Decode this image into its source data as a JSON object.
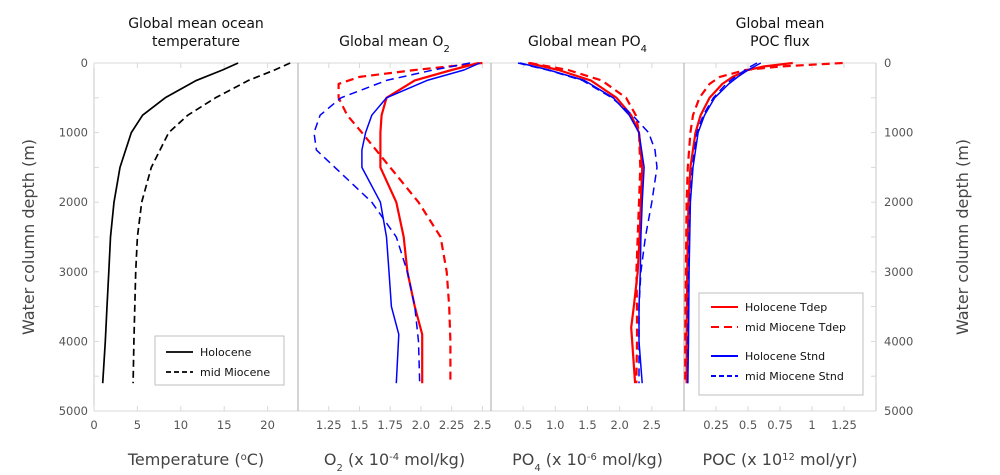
{
  "chart_data": {
    "type": "line",
    "y_axis": {
      "label": "Water column depth (m)",
      "range": [
        0,
        5000
      ],
      "inverted": true,
      "ticks": [
        "0",
        "1000",
        "2000",
        "3000",
        "4000",
        "5000"
      ],
      "tick_values": [
        0,
        1000,
        2000,
        3000,
        4000,
        5000
      ],
      "minor_step": 500
    },
    "panels": [
      {
        "id": "temperature",
        "title_lines": [
          "Global mean ocean",
          "temperature"
        ],
        "xlabel_parts": [
          "Temperature (",
          "o",
          "C)"
        ],
        "xlim": [
          0,
          23.5
        ],
        "ticks": [
          "0",
          "5",
          "10",
          "15",
          "20"
        ],
        "tick_values": [
          0,
          5,
          10,
          15,
          20
        ],
        "legend": {
          "position": "bottom-right",
          "entries": [
            {
              "label": "Holocene",
              "series": "holocene"
            },
            {
              "label": "mid Miocene",
              "series": "mid_miocene"
            }
          ]
        },
        "series": [
          {
            "key": "holocene",
            "name": "Holocene",
            "color": "#000000",
            "dash": "solid",
            "depth": [
              0,
              100,
              250,
              500,
              750,
              1000,
              1500,
              2000,
              2500,
              3000,
              3500,
              4000,
              4600
            ],
            "values": [
              16.6,
              14.8,
              11.8,
              8.2,
              5.6,
              4.3,
              3.0,
              2.3,
              1.9,
              1.7,
              1.5,
              1.3,
              1.0
            ]
          },
          {
            "key": "mid_miocene",
            "name": "mid Miocene",
            "color": "#000000",
            "dash": "dashed",
            "depth": [
              0,
              100,
              250,
              500,
              750,
              1000,
              1500,
              2000,
              2500,
              3000,
              3500,
              4000,
              4600
            ],
            "values": [
              22.6,
              20.8,
              17.8,
              14.0,
              10.8,
              8.6,
              6.6,
              5.5,
              5.0,
              4.8,
              4.7,
              4.6,
              4.5
            ]
          }
        ]
      },
      {
        "id": "o2",
        "title_parts": [
          "Global mean O",
          "2"
        ],
        "xlabel_parts": [
          "O",
          "2",
          " (x 10",
          "-4",
          " mol/kg)"
        ],
        "xlim": [
          1.0,
          2.57
        ],
        "ticks": [
          "1.25",
          "1.5",
          "1.75",
          "2.0",
          "2.25",
          "2.5"
        ],
        "tick_values": [
          1.25,
          1.5,
          1.75,
          2.0,
          2.25,
          2.5
        ],
        "series": [
          {
            "key": "hol_tdep",
            "name": "Holocene Tdep",
            "color": "#ff0000",
            "dash": "solid",
            "depth": [
              0,
              100,
              250,
              500,
              750,
              1000,
              1500,
              2000,
              2500,
              3000,
              3500,
              3900,
              4600
            ],
            "values": [
              2.47,
              2.25,
              1.95,
              1.72,
              1.68,
              1.67,
              1.67,
              1.8,
              1.86,
              1.89,
              1.95,
              2.01,
              2.01
            ]
          },
          {
            "key": "mio_tdep",
            "name": "mid Miocene Tdep",
            "color": "#ff0000",
            "dash": "dashed",
            "depth": [
              0,
              100,
              200,
              300,
              500,
              750,
              1000,
              1500,
              2000,
              2500,
              3000,
              3500,
              4000,
              4600
            ],
            "values": [
              2.5,
              1.95,
              1.5,
              1.33,
              1.33,
              1.4,
              1.52,
              1.75,
              1.98,
              2.16,
              2.21,
              2.23,
              2.24,
              2.24
            ]
          },
          {
            "key": "hol_stnd",
            "name": "Holocene Stnd",
            "color": "#0000ff",
            "dash": "solid",
            "depth": [
              0,
              100,
              250,
              500,
              750,
              1000,
              1250,
              1500,
              2000,
              2500,
              3000,
              3500,
              3900,
              4600
            ],
            "values": [
              2.48,
              2.35,
              2.05,
              1.72,
              1.6,
              1.55,
              1.52,
              1.52,
              1.67,
              1.72,
              1.74,
              1.76,
              1.82,
              1.8
            ]
          },
          {
            "key": "mio_stnd",
            "name": "mid Miocene Stnd",
            "color": "#0000ff",
            "dash": "dashed",
            "depth": [
              0,
              100,
              250,
              500,
              750,
              1000,
              1250,
              1500,
              2000,
              2500,
              3000,
              3500,
              4000,
              4600
            ],
            "values": [
              2.4,
              2.1,
              1.72,
              1.35,
              1.18,
              1.13,
              1.15,
              1.3,
              1.6,
              1.8,
              1.89,
              1.95,
              1.98,
              1.99
            ]
          }
        ]
      },
      {
        "id": "po4",
        "title_parts": [
          "Global mean PO",
          "4"
        ],
        "xlabel_parts": [
          "PO",
          "4",
          " (x 10",
          "-6",
          " mol/kg)"
        ],
        "xlim": [
          0,
          3.0
        ],
        "ticks": [
          "0.5",
          "1.0",
          "1.5",
          "2.0",
          "2.5"
        ],
        "tick_values": [
          0.5,
          1.0,
          1.5,
          2.0,
          2.5
        ],
        "series": [
          {
            "key": "hol_tdep",
            "name": "Holocene Tdep",
            "color": "#ff0000",
            "dash": "solid",
            "depth": [
              0,
              100,
              250,
              500,
              750,
              1000,
              1500,
              2000,
              2500,
              3000,
              3500,
              3800,
              4600
            ],
            "values": [
              0.58,
              1.05,
              1.55,
              1.95,
              2.18,
              2.3,
              2.35,
              2.33,
              2.31,
              2.28,
              2.22,
              2.18,
              2.24
            ]
          },
          {
            "key": "mio_tdep",
            "name": "mid Miocene Tdep",
            "color": "#ff0000",
            "dash": "dashed",
            "depth": [
              0,
              100,
              250,
              500,
              750,
              1000,
              1500,
              2000,
              2500,
              3000,
              3500,
              4000,
              4600
            ],
            "values": [
              0.6,
              1.2,
              1.72,
              2.1,
              2.25,
              2.3,
              2.32,
              2.3,
              2.28,
              2.26,
              2.27,
              2.27,
              2.26
            ]
          },
          {
            "key": "hol_stnd",
            "name": "Holocene Stnd",
            "color": "#0000ff",
            "dash": "solid",
            "depth": [
              0,
              100,
              250,
              500,
              750,
              1000,
              1500,
              2000,
              2500,
              3000,
              3500,
              4000,
              4600
            ],
            "values": [
              0.45,
              0.9,
              1.45,
              1.9,
              2.15,
              2.3,
              2.38,
              2.35,
              2.33,
              2.32,
              2.3,
              2.3,
              2.35
            ]
          },
          {
            "key": "mio_stnd",
            "name": "mid Miocene Stnd",
            "color": "#0000ff",
            "dash": "dashed",
            "depth": [
              0,
              100,
              250,
              500,
              750,
              1000,
              1250,
              1500,
              2000,
              2500,
              3000,
              3500,
              4000,
              4600
            ],
            "values": [
              0.42,
              0.88,
              1.42,
              1.88,
              2.2,
              2.45,
              2.55,
              2.58,
              2.5,
              2.4,
              2.33,
              2.3,
              2.3,
              2.3
            ]
          }
        ]
      },
      {
        "id": "poc",
        "title_lines": [
          "Global mean",
          "POC flux"
        ],
        "xlabel_parts": [
          "POC (x 10",
          "12",
          " mol/yr)"
        ],
        "xlim": [
          0,
          1.5
        ],
        "ticks": [
          "0.25",
          "0.5",
          "0.75",
          "1",
          "1.25"
        ],
        "tick_values": [
          0.25,
          0.5,
          0.75,
          1.0,
          1.25
        ],
        "legend": {
          "position": "bottom-right",
          "entries": [
            {
              "label": "Holocene Tdep",
              "series": "hol_tdep"
            },
            {
              "label": "mid Miocene Tdep",
              "series": "mio_tdep"
            },
            {
              "label": "Holocene Stnd",
              "series": "hol_stnd"
            },
            {
              "label": "mid Miocene Stnd",
              "series": "mio_stnd"
            }
          ]
        },
        "series": [
          {
            "key": "hol_tdep",
            "name": "Holocene Tdep",
            "color": "#ff0000",
            "dash": "solid",
            "depth": [
              0,
              50,
              100,
              200,
              300,
              500,
              750,
              1000,
              1500,
              2000,
              3000,
              4000,
              4600
            ],
            "values": [
              0.85,
              0.62,
              0.5,
              0.38,
              0.3,
              0.2,
              0.13,
              0.09,
              0.05,
              0.035,
              0.025,
              0.02,
              0.02
            ]
          },
          {
            "key": "mio_tdep",
            "name": "mid Miocene Tdep",
            "color": "#ff0000",
            "dash": "dashed",
            "depth": [
              0,
              50,
              100,
              200,
              300,
              500,
              750,
              1000,
              1500,
              2000,
              3000,
              4000,
              4600
            ],
            "values": [
              1.24,
              0.75,
              0.48,
              0.28,
              0.2,
              0.12,
              0.07,
              0.05,
              0.03,
              0.02,
              0.015,
              0.01,
              0.01
            ]
          },
          {
            "key": "hol_stnd",
            "name": "Holocene Stnd",
            "color": "#0000ff",
            "dash": "solid",
            "depth": [
              0,
              50,
              100,
              200,
              300,
              500,
              750,
              1000,
              1500,
              2000,
              3000,
              4000,
              4600
            ],
            "values": [
              0.6,
              0.55,
              0.5,
              0.42,
              0.35,
              0.24,
              0.16,
              0.11,
              0.07,
              0.05,
              0.04,
              0.035,
              0.03
            ]
          },
          {
            "key": "mio_stnd",
            "name": "mid Miocene Stnd",
            "color": "#0000ff",
            "dash": "dashed",
            "depth": [
              0,
              50,
              100,
              200,
              300,
              500,
              750,
              1000,
              1500,
              2000,
              3000,
              4000,
              4600
            ],
            "values": [
              0.57,
              0.52,
              0.48,
              0.4,
              0.33,
              0.23,
              0.15,
              0.1,
              0.065,
              0.045,
              0.035,
              0.03,
              0.03
            ]
          }
        ]
      }
    ]
  }
}
